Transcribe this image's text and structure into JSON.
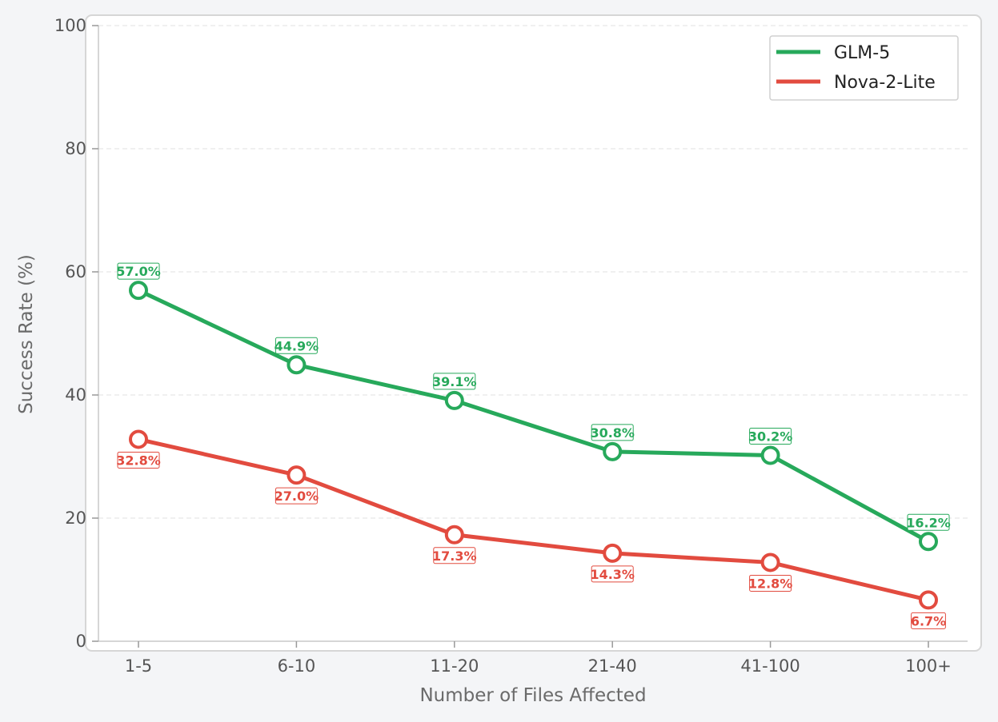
{
  "chart_data": {
    "type": "line",
    "title": "",
    "xlabel": "Number of Files Affected",
    "ylabel": "Success Rate (%)",
    "categories": [
      "1-5",
      "6-10",
      "11-20",
      "21-40",
      "41-100",
      "100+"
    ],
    "ylim": [
      0,
      100
    ],
    "yticks": [
      0,
      20,
      40,
      60,
      80,
      100
    ],
    "grid": "horizontal-dashed",
    "legend_position": "top-right",
    "series": [
      {
        "name": "GLM-5",
        "color": "#27a95b",
        "values": [
          57.0,
          44.9,
          39.1,
          30.8,
          30.2,
          16.2
        ],
        "labels": [
          "57.0%",
          "44.9%",
          "39.1%",
          "30.8%",
          "30.2%",
          "16.2%"
        ],
        "label_side": "above"
      },
      {
        "name": "Nova-2-Lite",
        "color": "#e24b3f",
        "values": [
          32.8,
          27.0,
          17.3,
          14.3,
          12.8,
          6.7
        ],
        "labels": [
          "32.8%",
          "27.0%",
          "17.3%",
          "14.3%",
          "12.8%",
          "6.7%"
        ],
        "label_side": "below"
      }
    ]
  }
}
